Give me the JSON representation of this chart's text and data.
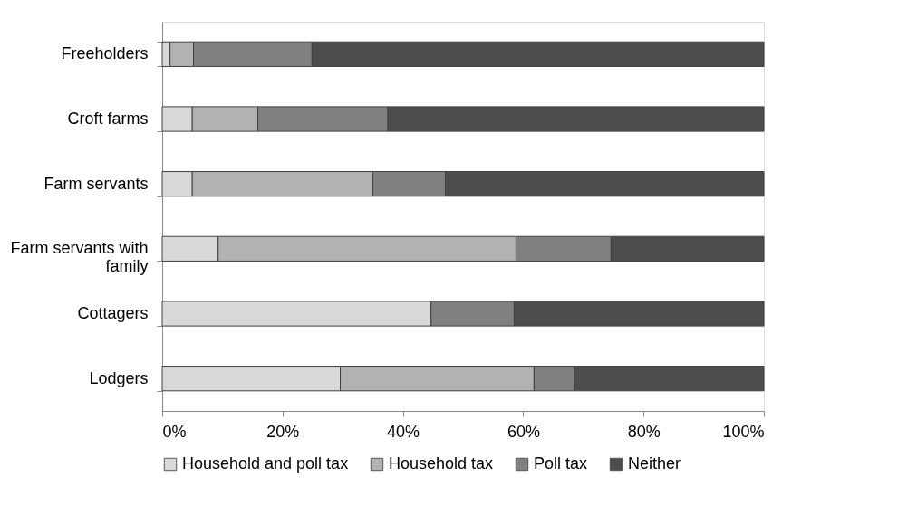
{
  "chart_data": {
    "type": "bar",
    "orientation": "horizontal",
    "stacked": true,
    "categories": [
      "Freeholders",
      "Croft farms",
      "Farm servants",
      "Farm servants with family",
      "Cottagers",
      "Lodgers"
    ],
    "series": [
      {
        "name": "Household and poll tax",
        "color": "#d9d9d9",
        "values": [
          1.3,
          5.0,
          5.0,
          9.3,
          44.7,
          29.6
        ]
      },
      {
        "name": "Household tax",
        "color": "#b2b2b2",
        "values": [
          3.9,
          10.9,
          30.0,
          49.5,
          null,
          32.2
        ]
      },
      {
        "name": "Poll tax",
        "color": "#808080",
        "values": [
          19.7,
          21.6,
          12.1,
          15.8,
          13.8,
          6.7
        ]
      },
      {
        "name": "Neither",
        "color": "#4d4d4d",
        "values": [
          75.1,
          62.5,
          52.9,
          25.4,
          41.5,
          31.5
        ]
      }
    ],
    "xlim": [
      0,
      100
    ],
    "xticks": [
      {
        "value": 0,
        "label": "0%"
      },
      {
        "value": 20,
        "label": "20%"
      },
      {
        "value": 40,
        "label": "40%"
      },
      {
        "value": 60,
        "label": "60%"
      },
      {
        "value": 80,
        "label": "80%"
      },
      {
        "value": 100,
        "label": "100%"
      }
    ],
    "legend": "bottom",
    "grid": false
  }
}
